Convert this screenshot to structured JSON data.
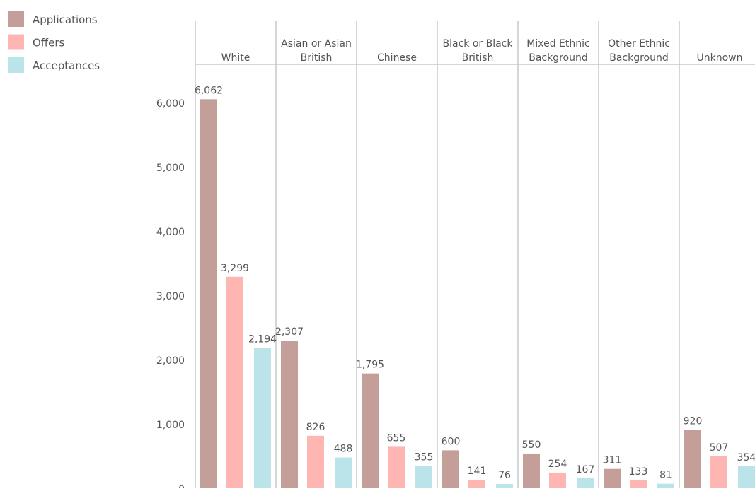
{
  "chart_data": {
    "type": "bar",
    "title": "",
    "xlabel": "",
    "ylabel": "",
    "ylim": [
      0,
      6600
    ],
    "y_ticks": [
      0,
      1000,
      2000,
      3000,
      4000,
      5000,
      6000
    ],
    "y_tick_labels": [
      "0",
      "1,000",
      "2,000",
      "3,000",
      "4,000",
      "5,000",
      "6,000"
    ],
    "grid": false,
    "legend_position": "top-left",
    "categories": [
      {
        "label": "White",
        "lines": [
          "White"
        ]
      },
      {
        "label": "Asian or Asian British",
        "lines": [
          "Asian or Asian",
          "British"
        ]
      },
      {
        "label": "Chinese",
        "lines": [
          "Chinese"
        ]
      },
      {
        "label": "Black or Black British",
        "lines": [
          "Black or Black",
          "British"
        ]
      },
      {
        "label": "Mixed Ethnic Background",
        "lines": [
          "Mixed Ethnic",
          "Background"
        ]
      },
      {
        "label": "Other Ethnic Background",
        "lines": [
          "Other Ethnic",
          "Background"
        ]
      },
      {
        "label": "Unknown",
        "lines": [
          "Unknown"
        ]
      }
    ],
    "series": [
      {
        "name": "Applications",
        "color": "#c49e98",
        "values": [
          6062,
          2307,
          1795,
          600,
          550,
          311,
          920
        ],
        "labels": [
          "6,062",
          "2,307",
          "1,795",
          "600",
          "550",
          "311",
          "920"
        ]
      },
      {
        "name": "Offers",
        "color": "#ffb6b3",
        "values": [
          3299,
          826,
          655,
          141,
          254,
          133,
          507
        ],
        "labels": [
          "3,299",
          "826",
          "655",
          "141",
          "254",
          "133",
          "507"
        ]
      },
      {
        "name": "Acceptances",
        "color": "#bbe4ea",
        "values": [
          2194,
          488,
          355,
          76,
          167,
          81,
          354
        ],
        "labels": [
          "2,194",
          "488",
          "355",
          "76",
          "167",
          "81",
          "354"
        ]
      }
    ]
  }
}
